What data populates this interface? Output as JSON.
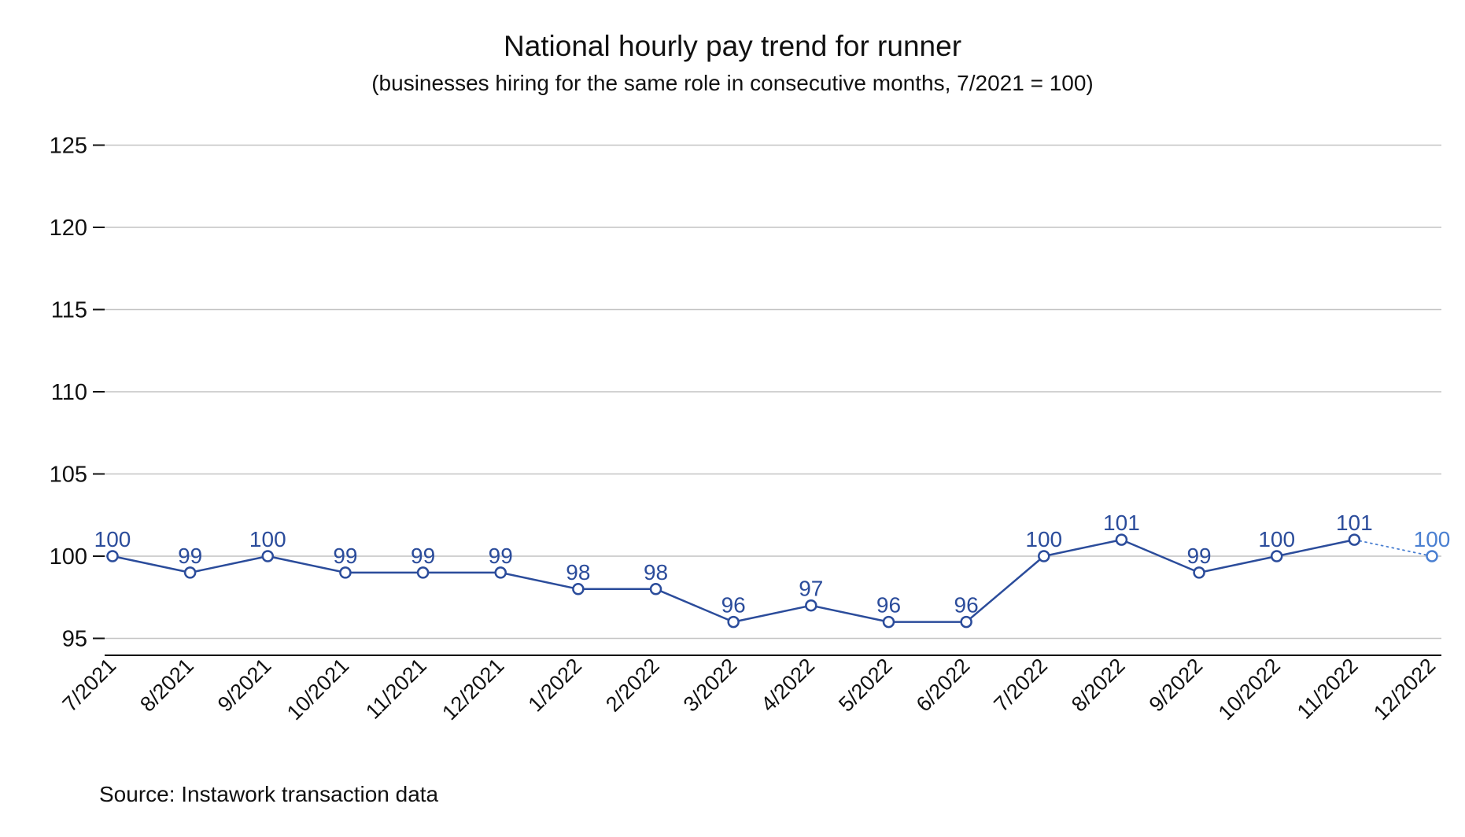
{
  "chart_data": {
    "type": "line",
    "title": "National hourly pay trend for runner",
    "subtitle": "(businesses hiring for the same role in consecutive months, 7/2021 = 100)",
    "source": "Source: Instawork transaction data",
    "xlabel": "",
    "ylabel": "",
    "categories": [
      "7/2021",
      "8/2021",
      "9/2021",
      "10/2021",
      "11/2021",
      "12/2021",
      "1/2022",
      "2/2022",
      "3/2022",
      "4/2022",
      "5/2022",
      "6/2022",
      "7/2022",
      "8/2022",
      "9/2022",
      "10/2022",
      "11/2022",
      "12/2022"
    ],
    "series": [
      {
        "values": [
          100,
          99,
          100,
          99,
          99,
          99,
          98,
          98,
          96,
          97,
          96,
          96,
          100,
          101,
          99,
          100,
          101,
          100
        ],
        "data_labels": [
          "100",
          "99",
          "100",
          "99",
          "99",
          "99",
          "98",
          "98",
          "96",
          "97",
          "96",
          "96",
          "100",
          "101",
          "99",
          "100",
          "101",
          "100"
        ],
        "color": "#2b4c9b",
        "last_point_color": "#4a7fd1",
        "last_segment_style": "dotted"
      }
    ],
    "ylim": [
      94,
      125
    ],
    "yticks": [
      95,
      100,
      105,
      110,
      115,
      120,
      125
    ],
    "grid": true,
    "legend": "none"
  }
}
